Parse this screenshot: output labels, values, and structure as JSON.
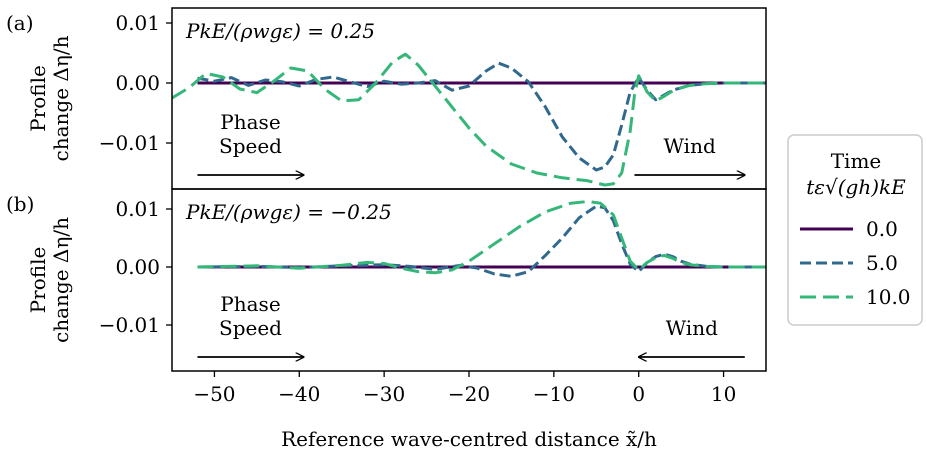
{
  "chart_data": {
    "type": "line",
    "xlabel": "Reference wave-centred distance x̃/h",
    "xlim": [
      -55,
      15
    ],
    "xticks": [
      "−50",
      "−40",
      "−30",
      "−20",
      "−10",
      "0",
      "10"
    ],
    "xtick_values": [
      -50,
      -40,
      -30,
      -20,
      -10,
      0,
      10
    ],
    "legend": {
      "title_line1": "Time",
      "title_line2": "tε√(gh)kE",
      "placement": "right",
      "entries": [
        "0.0",
        "5.0",
        "10.0"
      ]
    },
    "colors": {
      "0.0": "#440154",
      "5.0": "#31688e",
      "10.0": "#35b779"
    },
    "panels": [
      {
        "label": "(a)",
        "annotation": "PkE/(ρwgε) = 0.25",
        "ylabel_line1": "Profile",
        "ylabel_line2": "change Δη/h",
        "ylim": [
          -0.018,
          0.012
        ],
        "yticks": [
          "0.01",
          "0.00",
          "−0.01"
        ],
        "ytick_values": [
          0.01,
          0.0,
          -0.01
        ],
        "arrows": [
          {
            "text1": "Phase",
            "text2": "Speed",
            "from": -52,
            "to": -39.5,
            "direction": "right"
          },
          {
            "text1": "Wind",
            "text2": "",
            "from": -0.5,
            "to": 12.5,
            "direction": "right"
          }
        ],
        "series": [
          {
            "name": "0.0",
            "x": [
              -52,
              15
            ],
            "y": [
              0.0,
              0.0
            ]
          },
          {
            "name": "5.0",
            "x": [
              -52,
              -50,
              -48,
              -46,
              -44,
              -42,
              -40,
              -38,
              -36,
              -34,
              -32,
              -30,
              -28,
              -26,
              -24,
              -22,
              -20,
              -18,
              -16.5,
              -15,
              -13,
              -11,
              -9,
              -7,
              -5,
              -4,
              -3,
              -2,
              -1,
              0,
              1,
              2,
              3,
              4,
              5,
              6,
              8,
              10,
              15
            ],
            "y": [
              0.0008,
              0.0003,
              0.0009,
              -0.0004,
              0.0005,
              0.0002,
              -0.0005,
              0.0006,
              0.001,
              0.0002,
              -0.0006,
              0.0003,
              -0.0002,
              0.0,
              0.0004,
              -0.0012,
              -0.0005,
              0.002,
              0.0033,
              0.0025,
              0.0002,
              -0.004,
              -0.009,
              -0.0125,
              -0.0145,
              -0.014,
              -0.012,
              -0.007,
              -0.0015,
              0.0009,
              -0.0012,
              -0.0028,
              -0.002,
              -0.0012,
              -0.0008,
              -0.0004,
              -0.0001,
              0.0,
              0.0
            ]
          },
          {
            "name": "10.0",
            "x": [
              -55,
              -53,
              -51,
              -49,
              -47,
              -45,
              -43,
              -41,
              -39,
              -37,
              -35,
              -33,
              -31,
              -29,
              -27.5,
              -26,
              -24,
              -22,
              -20,
              -18,
              -15,
              -12,
              -9,
              -6,
              -4,
              -3,
              -2,
              -1,
              -0.5,
              0,
              1,
              2,
              3,
              4,
              5,
              6,
              8,
              10,
              15
            ],
            "y": [
              -0.0025,
              -0.0008,
              0.0016,
              0.001,
              -0.001,
              -0.0016,
              0.0003,
              0.0025,
              0.002,
              -0.001,
              -0.003,
              -0.0028,
              0.0,
              0.0035,
              0.0048,
              0.003,
              -0.0005,
              -0.004,
              -0.0075,
              -0.0105,
              -0.0135,
              -0.015,
              -0.0158,
              -0.0163,
              -0.017,
              -0.0168,
              -0.015,
              -0.008,
              -0.002,
              0.0012,
              -0.0015,
              -0.003,
              -0.0022,
              -0.0013,
              -0.0008,
              -0.0004,
              -0.0001,
              0.0,
              0.0
            ]
          }
        ]
      },
      {
        "label": "(b)",
        "annotation": "PkE/(ρwgε) = −0.25",
        "ylabel_line1": "Profile",
        "ylabel_line2": "change Δη/h",
        "ylim": [
          -0.018,
          0.012
        ],
        "yticks": [
          "0.01",
          "0.00",
          "−0.01"
        ],
        "ytick_values": [
          0.01,
          0.0,
          -0.01
        ],
        "arrows": [
          {
            "text1": "Phase",
            "text2": "Speed",
            "from": -52,
            "to": -39.5,
            "direction": "right"
          },
          {
            "text1": "Wind",
            "text2": "",
            "from": 12.5,
            "to": 0,
            "direction": "left"
          }
        ],
        "series": [
          {
            "name": "0.0",
            "x": [
              -52,
              15
            ],
            "y": [
              0.0,
              0.0
            ]
          },
          {
            "name": "5.0",
            "x": [
              -52,
              -45,
              -40,
              -35,
              -30,
              -27,
              -24,
              -21,
              -19,
              -17,
              -15,
              -13,
              -11,
              -9,
              -7,
              -5,
              -4,
              -3,
              -2,
              -1,
              0,
              1,
              2,
              3,
              4,
              5,
              6,
              8,
              10,
              15
            ],
            "y": [
              0.0,
              0.0001,
              -0.0001,
              0.0002,
              0.0004,
              0.0001,
              -0.0004,
              0.0003,
              -0.0002,
              -0.0012,
              -0.0016,
              -0.0008,
              0.002,
              0.005,
              0.0085,
              0.0105,
              0.0102,
              0.008,
              0.004,
              0.0005,
              -0.0008,
              0.0008,
              0.0018,
              0.0022,
              0.0018,
              0.001,
              0.0005,
              0.0001,
              0.0,
              0.0
            ]
          },
          {
            "name": "10.0",
            "x": [
              -52,
              -45,
              -40,
              -35,
              -32,
              -30,
              -28,
              -26,
              -24,
              -22,
              -20,
              -17,
              -14,
              -11,
              -8,
              -6,
              -4.5,
              -3,
              -2,
              -1,
              0,
              1,
              2,
              3,
              4,
              5,
              6,
              8,
              10,
              15
            ],
            "y": [
              0.0,
              0.0002,
              -0.0002,
              0.0003,
              0.0008,
              0.0006,
              -0.0002,
              -0.0008,
              -0.001,
              -0.0005,
              0.001,
              0.004,
              0.007,
              0.0095,
              0.011,
              0.0113,
              0.011,
              0.009,
              0.005,
              0.001,
              -0.0005,
              0.0008,
              0.0016,
              0.002,
              0.0015,
              0.0008,
              0.0004,
              0.0001,
              0.0,
              0.0
            ]
          }
        ]
      }
    ]
  }
}
